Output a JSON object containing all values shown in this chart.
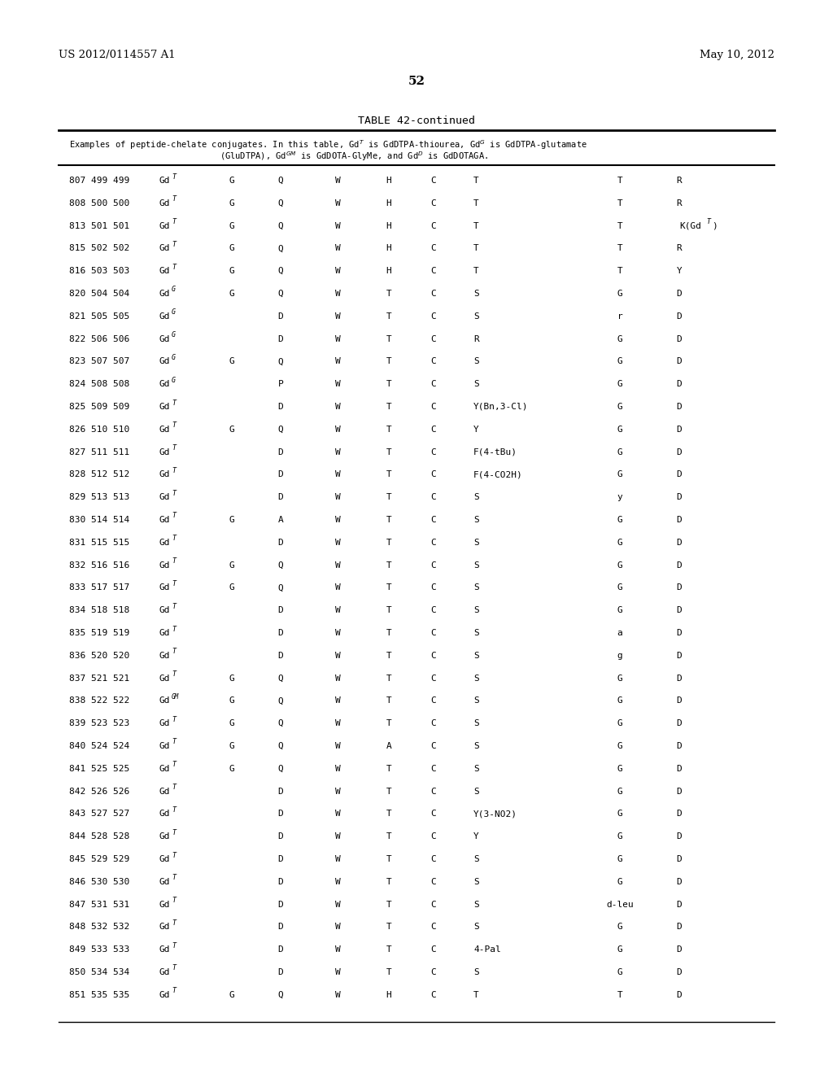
{
  "patent_number": "US 2012/0114557 A1",
  "patent_date": "May 10, 2012",
  "page_number": "52",
  "table_title": "TABLE 42-continued",
  "table_caption": "Examples of peptide-chelate conjugates. In this table, Gdᵀ is GdDTPA-thiourea, Gdᴳ is GdDTPA-glutamate\n(GluDTPA), Gdᴳᴹ is GdDOTA-GlyMe, and Gdᴰ is GdDOTAGA.",
  "rows": [
    [
      "807 499 499",
      "Gd^T",
      "G",
      "Q",
      "W",
      "H",
      "C",
      "T",
      "T",
      "R"
    ],
    [
      "808 500 500",
      "Gd^T",
      "G",
      "Q",
      "W",
      "H",
      "C",
      "T",
      "T",
      "R"
    ],
    [
      "813 501 501",
      "Gd^T",
      "G",
      "Q",
      "W",
      "H",
      "C",
      "T",
      "T",
      "K(Gd^T)"
    ],
    [
      "815 502 502",
      "Gd^T",
      "G",
      "Q",
      "W",
      "H",
      "C",
      "T",
      "T",
      "R"
    ],
    [
      "816 503 503",
      "Gd^T",
      "G",
      "Q",
      "W",
      "H",
      "C",
      "T",
      "T",
      "Y"
    ],
    [
      "820 504 504",
      "Gd^G",
      "G",
      "Q",
      "W",
      "T",
      "C",
      "S",
      "G",
      "D"
    ],
    [
      "821 505 505",
      "Gd^G",
      "",
      "D",
      "W",
      "T",
      "C",
      "S",
      "r",
      "D"
    ],
    [
      "822 506 506",
      "Gd^G",
      "",
      "D",
      "W",
      "T",
      "C",
      "R",
      "G",
      "D"
    ],
    [
      "823 507 507",
      "Gd^G",
      "G",
      "Q",
      "W",
      "T",
      "C",
      "S",
      "G",
      "D"
    ],
    [
      "824 508 508",
      "Gd^G",
      "",
      "P",
      "W",
      "T",
      "C",
      "S",
      "G",
      "D"
    ],
    [
      "825 509 509",
      "Gd^T",
      "",
      "D",
      "W",
      "T",
      "C",
      "Y(Bn,3-Cl)",
      "G",
      "D"
    ],
    [
      "826 510 510",
      "Gd^T",
      "G",
      "Q",
      "W",
      "T",
      "C",
      "Y",
      "G",
      "D"
    ],
    [
      "827 511 511",
      "Gd^T",
      "",
      "D",
      "W",
      "T",
      "C",
      "F(4-tBu)",
      "G",
      "D"
    ],
    [
      "828 512 512",
      "Gd^T",
      "",
      "D",
      "W",
      "T",
      "C",
      "F(4-CO2H)",
      "G",
      "D"
    ],
    [
      "829 513 513",
      "Gd^T",
      "",
      "D",
      "W",
      "T",
      "C",
      "S",
      "y",
      "D"
    ],
    [
      "830 514 514",
      "Gd^T",
      "G",
      "A",
      "W",
      "T",
      "C",
      "S",
      "G",
      "D"
    ],
    [
      "831 515 515",
      "Gd^T",
      "",
      "D",
      "W",
      "T",
      "C",
      "S",
      "G",
      "D"
    ],
    [
      "832 516 516",
      "Gd^T",
      "G",
      "Q",
      "W",
      "T",
      "C",
      "S",
      "G",
      "D"
    ],
    [
      "833 517 517",
      "Gd^T",
      "G",
      "Q",
      "W",
      "T",
      "C",
      "S",
      "G",
      "D"
    ],
    [
      "834 518 518",
      "Gd^T",
      "",
      "D",
      "W",
      "T",
      "C",
      "S",
      "G",
      "D"
    ],
    [
      "835 519 519",
      "Gd^T",
      "",
      "D",
      "W",
      "T",
      "C",
      "S",
      "a",
      "D"
    ],
    [
      "836 520 520",
      "Gd^T",
      "",
      "D",
      "W",
      "T",
      "C",
      "S",
      "g",
      "D"
    ],
    [
      "837 521 521",
      "Gd^T",
      "G",
      "Q",
      "W",
      "T",
      "C",
      "S",
      "G",
      "D"
    ],
    [
      "838 522 522",
      "Gd^GM",
      "G",
      "Q",
      "W",
      "T",
      "C",
      "S",
      "G",
      "D"
    ],
    [
      "839 523 523",
      "Gd^T",
      "G",
      "Q",
      "W",
      "T",
      "C",
      "S",
      "G",
      "D"
    ],
    [
      "840 524 524",
      "Gd^T",
      "G",
      "Q",
      "W",
      "A",
      "C",
      "S",
      "G",
      "D"
    ],
    [
      "841 525 525",
      "Gd^T",
      "G",
      "Q",
      "W",
      "T",
      "C",
      "S",
      "G",
      "D"
    ],
    [
      "842 526 526",
      "Gd^T",
      "",
      "D",
      "W",
      "T",
      "C",
      "S",
      "G",
      "D"
    ],
    [
      "843 527 527",
      "Gd^T",
      "",
      "D",
      "W",
      "T",
      "C",
      "Y(3-NO2)",
      "G",
      "D"
    ],
    [
      "844 528 528",
      "Gd^T",
      "",
      "D",
      "W",
      "T",
      "C",
      "Y",
      "G",
      "D"
    ],
    [
      "845 529 529",
      "Gd^T",
      "",
      "D",
      "W",
      "T",
      "C",
      "S",
      "G",
      "D"
    ],
    [
      "846 530 530",
      "Gd^T",
      "",
      "D",
      "W",
      "T",
      "C",
      "S",
      "G",
      "D"
    ],
    [
      "847 531 531",
      "Gd^T",
      "",
      "D",
      "W",
      "T",
      "C",
      "S",
      "d-leu",
      "D"
    ],
    [
      "848 532 532",
      "Gd^T",
      "",
      "D",
      "W",
      "T",
      "C",
      "S",
      "G",
      "D"
    ],
    [
      "849 533 533",
      "Gd^T",
      "",
      "D",
      "W",
      "T",
      "C",
      "4-Pal",
      "G",
      "D"
    ],
    [
      "850 534 534",
      "Gd^T",
      "",
      "D",
      "W",
      "T",
      "C",
      "S",
      "G",
      "D"
    ],
    [
      "851 535 535",
      "Gd^T",
      "G",
      "Q",
      "W",
      "H",
      "C",
      "T",
      "T",
      "D"
    ]
  ],
  "background_color": "#ffffff",
  "text_color": "#000000",
  "font_family": "monospace"
}
